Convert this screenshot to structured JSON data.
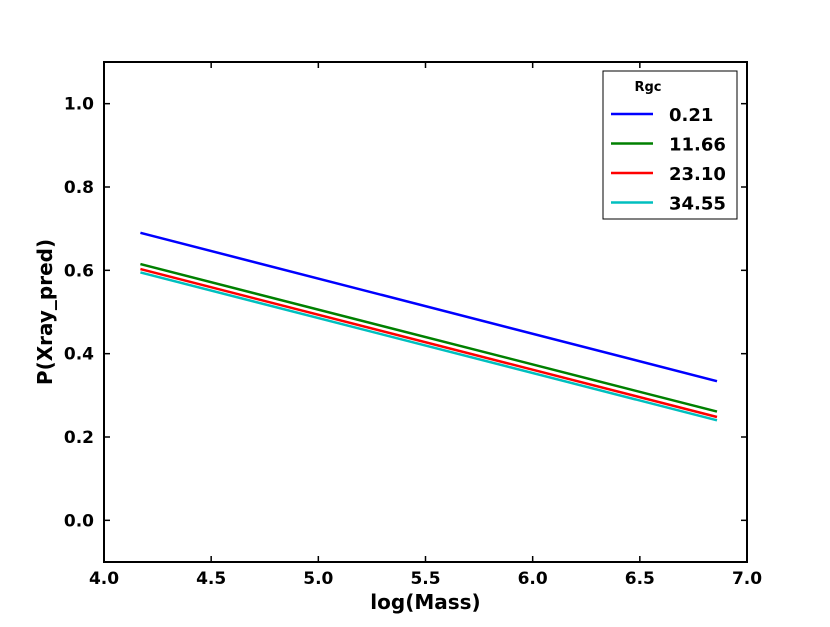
{
  "chart_data": {
    "type": "line",
    "title": "",
    "xlabel": "log(Mass)",
    "ylabel": "P(Xray_pred)",
    "xlim": [
      4.0,
      7.0
    ],
    "ylim": [
      -0.1,
      1.1
    ],
    "xticks": [
      4.0,
      4.5,
      5.0,
      5.5,
      6.0,
      6.5,
      7.0
    ],
    "xtick_labels": [
      "4.0",
      "4.5",
      "5.0",
      "5.5",
      "6.0",
      "6.5",
      "7.0"
    ],
    "yticks": [
      0.0,
      0.2,
      0.4,
      0.6,
      0.8,
      1.0
    ],
    "ytick_labels": [
      "0.0",
      "0.2",
      "0.4",
      "0.6",
      "0.8",
      "1.0"
    ],
    "grid": false,
    "legend": {
      "title": "Rgc",
      "placement": "top-right"
    },
    "series": [
      {
        "name": "0.21",
        "color": "#0000ff",
        "x": [
          4.17,
          6.86
        ],
        "y": [
          0.69,
          0.334
        ]
      },
      {
        "name": "11.66",
        "color": "#008000",
        "x": [
          4.17,
          6.86
        ],
        "y": [
          0.615,
          0.261
        ]
      },
      {
        "name": "23.10",
        "color": "#ff0000",
        "x": [
          4.17,
          6.86
        ],
        "y": [
          0.603,
          0.248
        ]
      },
      {
        "name": "34.55",
        "color": "#00bfbf",
        "x": [
          4.17,
          6.86
        ],
        "y": [
          0.595,
          0.24
        ]
      }
    ]
  }
}
